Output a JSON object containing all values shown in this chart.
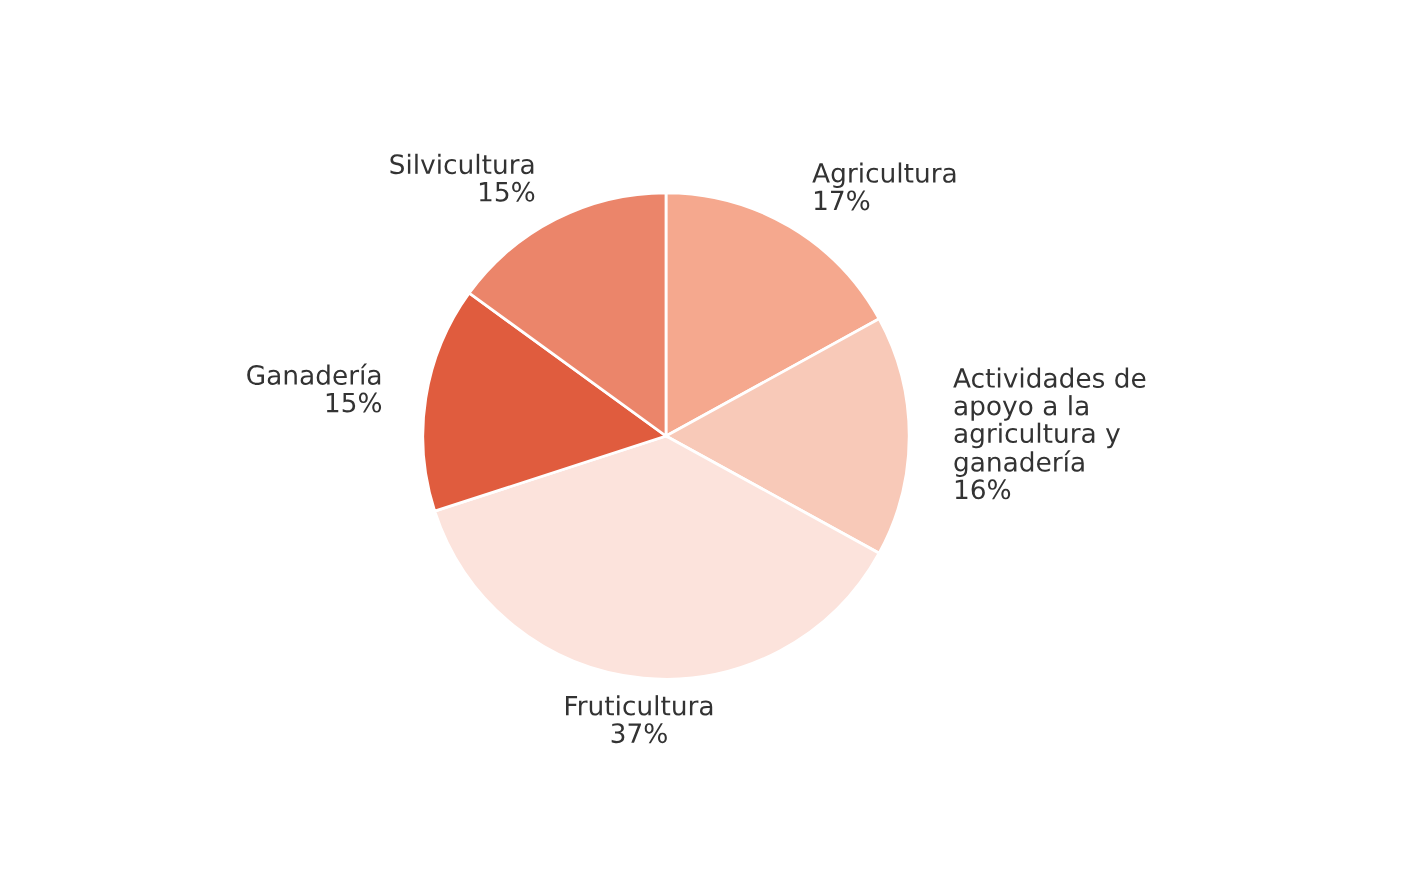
{
  "chart_data": {
    "type": "pie",
    "categories": [
      "Agricultura",
      "Actividades de\napoyo a la\nagricultura y\nganadería",
      "Fruticultura",
      "Ganadería",
      "Silvicultura"
    ],
    "values": [
      17,
      16,
      37,
      15,
      15
    ],
    "value_labels": [
      "17%",
      "16%",
      "37%",
      "15%",
      "15%"
    ],
    "colors": [
      "#f5a88e",
      "#f8c9b8",
      "#fce3dc",
      "#e05c3e",
      "#eb856a"
    ],
    "legend": false
  }
}
